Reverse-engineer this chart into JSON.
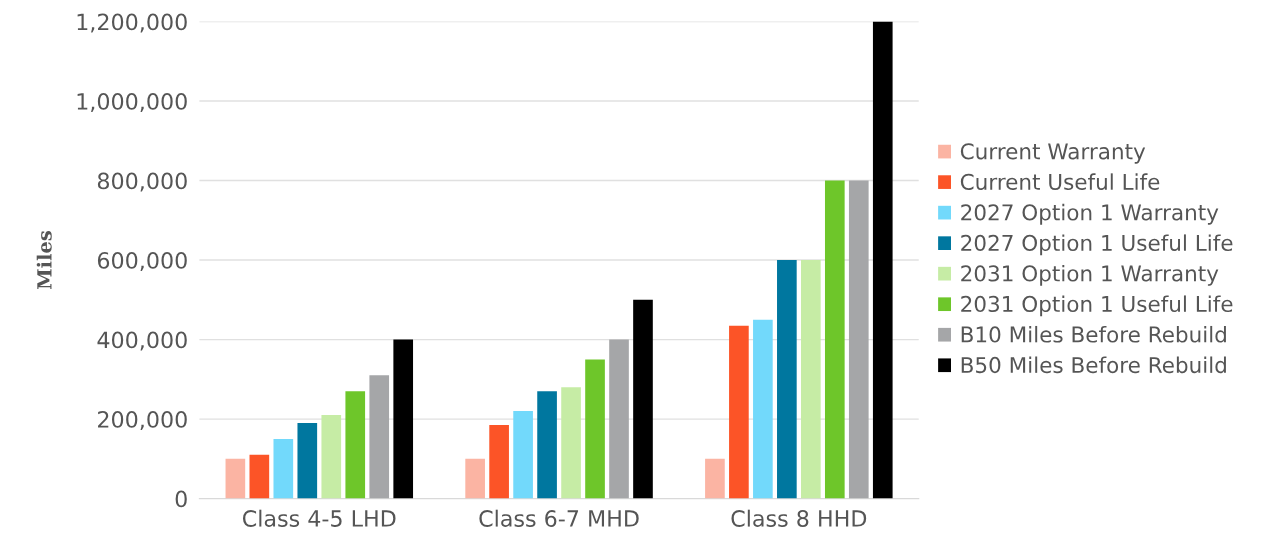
{
  "chart_data": {
    "type": "bar",
    "ylabel": "Miles",
    "categories": [
      "Class 4-5 LHD",
      "Class 6-7 MHD",
      "Class 8 HHD"
    ],
    "series": [
      {
        "name": "Current Warranty",
        "color": "#fbb4a3",
        "values": [
          100000,
          100000,
          100000
        ]
      },
      {
        "name": "Current Useful Life",
        "color": "#fc5427",
        "values": [
          110000,
          185000,
          435000
        ]
      },
      {
        "name": "2027 Option 1 Warranty",
        "color": "#72d9fb",
        "values": [
          150000,
          220000,
          450000
        ]
      },
      {
        "name": "2027 Option 1 Useful Life",
        "color": "#00779f",
        "values": [
          190000,
          270000,
          600000
        ]
      },
      {
        "name": "2031 Option 1 Warranty",
        "color": "#c6eca5",
        "values": [
          210000,
          280000,
          600000
        ]
      },
      {
        "name": "2031 Option 1 Useful Life",
        "color": "#6ec62a",
        "values": [
          270000,
          350000,
          800000
        ]
      },
      {
        "name": "B10 Miles Before Rebuild",
        "color": "#a5a6a8",
        "values": [
          310000,
          400000,
          800000
        ]
      },
      {
        "name": "B50 Miles Before Rebuild",
        "color": "#000000",
        "values": [
          400000,
          500000,
          1200000
        ]
      }
    ],
    "ylim": [
      0,
      1200000
    ],
    "yticks": [
      {
        "value": 0,
        "label": "0"
      },
      {
        "value": 200000,
        "label": "200,000"
      },
      {
        "value": 400000,
        "label": "400,000"
      },
      {
        "value": 600000,
        "label": "600,000"
      },
      {
        "value": 800000,
        "label": "800,000"
      },
      {
        "value": 1000000,
        "label": "1,000,000"
      },
      {
        "value": 1200000,
        "label": "1,200,000"
      }
    ],
    "grid": "y",
    "legend": "right"
  }
}
